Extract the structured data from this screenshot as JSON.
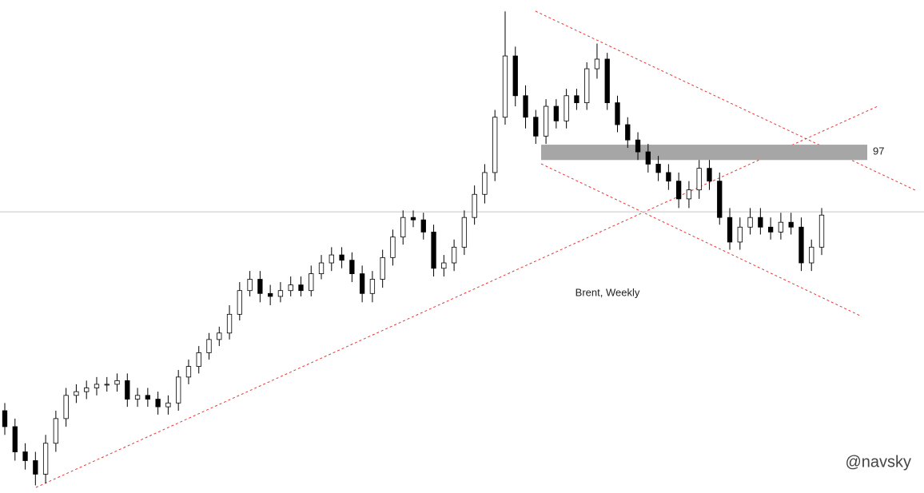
{
  "chart_data": {
    "type": "candlestick",
    "title": "Brent, Weekly",
    "watermark": "@navsky",
    "log_scale": true,
    "ylim": [
      40.5,
      143.1
    ],
    "band": {
      "value": 97,
      "low": 95,
      "high": 98.8
    },
    "reference_line": 83.2,
    "up_color": "#ffffff",
    "down_color": "#000000",
    "categories": [
      null,
      null,
      null,
      null,
      null,
      null,
      null,
      null,
      null,
      null,
      null,
      null,
      null,
      null,
      null,
      null,
      null,
      null,
      null,
      null,
      null,
      null,
      null,
      null,
      null,
      null,
      null,
      null,
      null,
      null,
      null,
      null,
      null,
      null,
      null,
      null,
      null,
      null,
      null,
      null,
      null,
      null,
      null,
      null,
      null,
      null,
      null,
      null,
      null,
      null,
      null,
      null,
      null,
      null,
      null,
      null,
      null,
      null,
      null,
      null,
      null,
      null,
      null,
      null,
      null,
      null,
      null,
      null,
      null,
      null,
      null,
      null,
      null,
      null,
      null,
      null,
      null,
      null,
      null,
      null,
      null
    ],
    "open": [
      50,
      48,
      45,
      44,
      42.5,
      46,
      49,
      52,
      52.5,
      53,
      53.5,
      53.5,
      54,
      51.5,
      52,
      51.5,
      50.5,
      51,
      54.5,
      56,
      58,
      60,
      61,
      64,
      68,
      70,
      67.5,
      67,
      68,
      69,
      68,
      71,
      73,
      74.5,
      73.5,
      71,
      67.5,
      70,
      74,
      78,
      82,
      81.5,
      79,
      72,
      73,
      76,
      82,
      87,
      92,
      106,
      124,
      112,
      106,
      101,
      109,
      105,
      112,
      110,
      120,
      123,
      110,
      104,
      100,
      97,
      94,
      92,
      90,
      86,
      88,
      93,
      90,
      82,
      77,
      80,
      82,
      80,
      79,
      81,
      80,
      73,
      76
    ],
    "high": [
      51,
      49,
      46,
      45,
      47,
      50,
      53,
      53.5,
      54,
      54.5,
      54.5,
      55,
      55,
      53,
      53,
      52.5,
      52,
      55.5,
      57,
      59,
      61,
      62,
      65.5,
      69.5,
      71.5,
      71.5,
      69,
      69.5,
      70.5,
      70.5,
      72.5,
      74.5,
      76,
      76,
      75,
      72.5,
      71.5,
      75.5,
      79.5,
      83.5,
      83.5,
      83,
      80.5,
      74.5,
      77.5,
      83.5,
      89,
      94,
      108,
      139,
      127,
      115,
      108,
      111,
      111,
      114,
      114,
      122,
      128,
      125,
      112,
      106,
      102,
      99,
      96,
      94,
      92,
      90,
      95,
      95,
      92,
      84,
      82,
      84,
      84,
      82,
      83,
      83,
      82,
      77.5,
      84
    ],
    "low": [
      47,
      44,
      43,
      41.3,
      41.5,
      45,
      48,
      51,
      51.5,
      52,
      52.5,
      52.5,
      50.5,
      50.5,
      50.5,
      49.5,
      49.5,
      50,
      53.5,
      55,
      57,
      59,
      60,
      63,
      67,
      66,
      65.5,
      66,
      67,
      67,
      67,
      70,
      71.5,
      72,
      69.5,
      66,
      66,
      68.5,
      72.5,
      76.5,
      80,
      77.5,
      70.5,
      70.5,
      71.5,
      74.5,
      80.5,
      85,
      90,
      104,
      109,
      103,
      99,
      99,
      103,
      103,
      108,
      108,
      117,
      108,
      102,
      98,
      95,
      92,
      90,
      88,
      84,
      84,
      86,
      88,
      80.5,
      75.5,
      75.5,
      78.5,
      78.5,
      77.5,
      77.5,
      78.5,
      71.5,
      71.5,
      74.5
    ],
    "close": [
      48,
      45,
      44,
      42.5,
      46,
      49,
      52,
      52.5,
      53,
      53.5,
      53.5,
      54,
      51.5,
      52,
      51.5,
      50.5,
      51,
      54.5,
      56,
      58,
      60,
      61,
      64,
      68,
      70,
      67.5,
      67,
      68,
      69,
      68,
      71,
      73,
      74.5,
      73.5,
      71,
      67.5,
      70,
      74,
      78,
      82,
      81.5,
      79,
      72,
      73,
      76,
      82,
      87,
      92,
      106,
      124,
      112,
      106,
      101,
      109,
      105,
      112,
      110,
      120,
      123,
      110,
      104,
      100,
      97,
      94,
      92,
      90,
      86,
      88,
      93,
      90,
      82,
      77,
      80,
      82,
      80,
      79,
      81,
      80,
      73,
      76,
      82.5
    ]
  }
}
